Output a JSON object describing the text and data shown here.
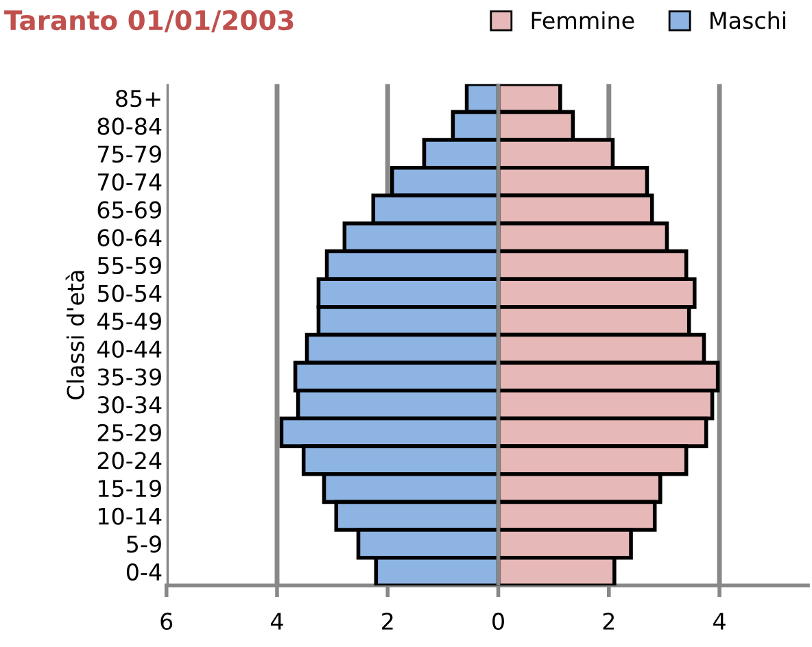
{
  "chart_data": {
    "type": "bar",
    "orientation": "horizontal",
    "title": "Taranto 01/01/2003",
    "ylabel": "Classi d'età",
    "categories": [
      "85+",
      "80-84",
      "75-79",
      "70-74",
      "65-69",
      "60-64",
      "55-59",
      "50-54",
      "45-49",
      "40-44",
      "35-39",
      "30-34",
      "25-29",
      "20-24",
      "15-19",
      "10-14",
      "5-9",
      "0-4"
    ],
    "series": [
      {
        "name": "Femmine",
        "color": "#e6b8b7",
        "values": [
          1.12,
          1.35,
          2.07,
          2.69,
          2.78,
          3.05,
          3.4,
          3.55,
          3.45,
          3.72,
          3.97,
          3.87,
          3.76,
          3.4,
          2.93,
          2.83,
          2.4,
          2.1
        ]
      },
      {
        "name": "Maschi",
        "color": "#8eb4e3",
        "values": [
          -0.57,
          -0.82,
          -1.34,
          -1.92,
          -2.26,
          -2.78,
          -3.1,
          -3.25,
          -3.25,
          -3.46,
          -3.67,
          -3.62,
          -3.92,
          -3.52,
          -3.15,
          -2.93,
          -2.53,
          -2.21
        ]
      }
    ],
    "xlim": [
      -6,
      5.6
    ],
    "xticks": [
      {
        "value": -6,
        "label": "6"
      },
      {
        "value": -4,
        "label": "4"
      },
      {
        "value": -2,
        "label": "2"
      },
      0,
      2,
      4
    ],
    "stacked": true,
    "grid": "x",
    "legend": "top right"
  }
}
